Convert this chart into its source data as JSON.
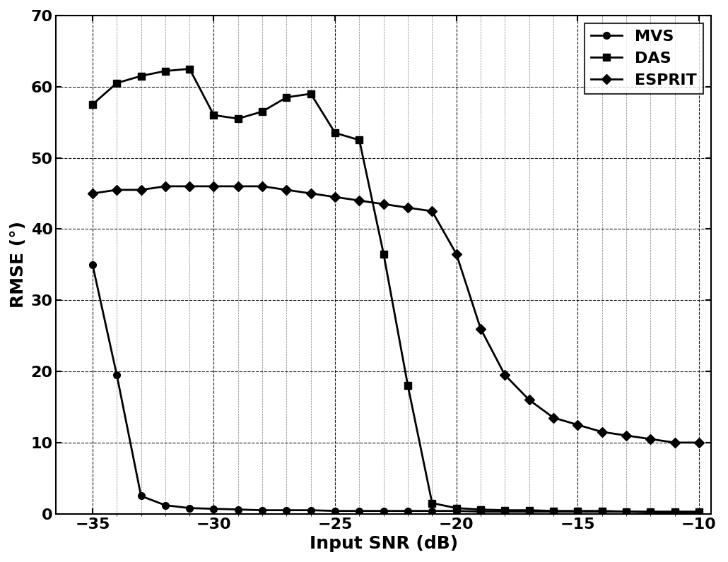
{
  "title": "",
  "xlabel": "Input SNR (dB)",
  "ylabel": "RMSE (°)",
  "xlim": [
    -36.5,
    -9.5
  ],
  "ylim": [
    0,
    70
  ],
  "xticks": [
    -35,
    -30,
    -25,
    -20,
    -15,
    -10
  ],
  "yticks": [
    0,
    10,
    20,
    30,
    40,
    50,
    60,
    70
  ],
  "MVS": {
    "x": [
      -35,
      -34,
      -33,
      -32,
      -31,
      -30,
      -29,
      -28,
      -27,
      -26,
      -25,
      -24,
      -23,
      -22,
      -21,
      -20,
      -19,
      -18,
      -17,
      -16,
      -15,
      -14,
      -13,
      -12,
      -11,
      -10
    ],
    "y": [
      35.0,
      19.5,
      2.5,
      1.2,
      0.8,
      0.7,
      0.6,
      0.5,
      0.5,
      0.5,
      0.4,
      0.4,
      0.4,
      0.4,
      0.4,
      0.4,
      0.3,
      0.3,
      0.3,
      0.3,
      0.3,
      0.3,
      0.3,
      0.2,
      0.2,
      0.2
    ],
    "color": "#000000",
    "marker": "o",
    "markersize": 7,
    "linewidth": 2.0
  },
  "DAS": {
    "x": [
      -35,
      -34,
      -33,
      -32,
      -31,
      -30,
      -29,
      -28,
      -27,
      -26,
      -25,
      -24,
      -23,
      -22,
      -21,
      -20,
      -19,
      -18,
      -17,
      -16,
      -15,
      -14,
      -13,
      -12,
      -11,
      -10
    ],
    "y": [
      57.5,
      60.5,
      61.5,
      62.2,
      62.5,
      56.0,
      55.5,
      56.5,
      58.5,
      59.0,
      53.5,
      52.5,
      36.5,
      18.0,
      1.5,
      0.8,
      0.6,
      0.5,
      0.5,
      0.4,
      0.4,
      0.4,
      0.3,
      0.3,
      0.3,
      0.3
    ],
    "color": "#000000",
    "marker": "s",
    "markersize": 7,
    "linewidth": 2.0
  },
  "ESPRIT": {
    "x": [
      -35,
      -34,
      -33,
      -32,
      -31,
      -30,
      -29,
      -28,
      -27,
      -26,
      -25,
      -24,
      -23,
      -22,
      -21,
      -20,
      -19,
      -18,
      -17,
      -16,
      -15,
      -14,
      -13,
      -12,
      -11,
      -10
    ],
    "y": [
      45.0,
      45.5,
      45.5,
      46.0,
      46.0,
      46.0,
      46.0,
      46.0,
      45.5,
      45.0,
      44.5,
      44.0,
      43.5,
      43.0,
      42.5,
      36.5,
      26.0,
      19.5,
      16.0,
      13.5,
      12.5,
      11.5,
      11.0,
      10.5,
      10.0,
      10.0
    ],
    "color": "#000000",
    "marker": "D",
    "markersize": 7,
    "linewidth": 2.0
  },
  "legend_loc": "upper right",
  "grid_color": "#000000",
  "background_color": "#ffffff",
  "font_size": 16,
  "label_font_size": 18
}
